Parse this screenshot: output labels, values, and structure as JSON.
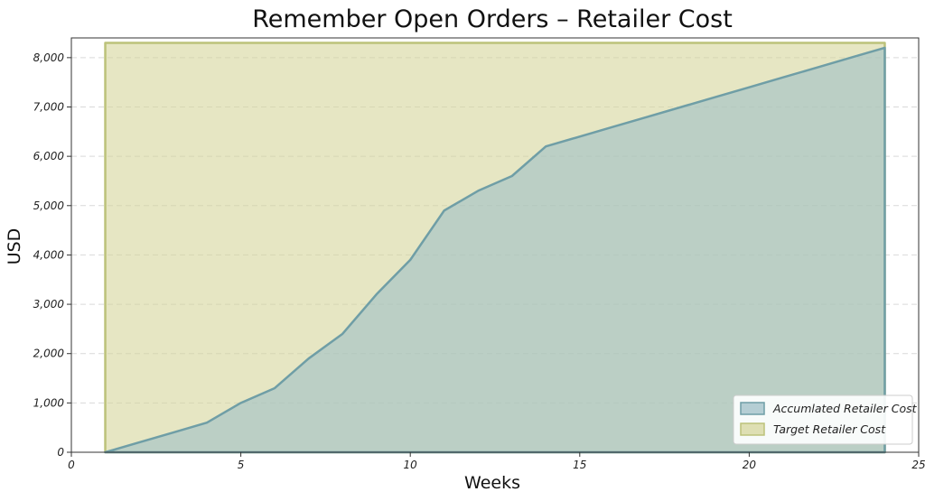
{
  "chart_data": {
    "type": "area",
    "title": "Remember Open Orders – Retailer Cost",
    "xlabel": "Weeks",
    "ylabel": "USD",
    "xlim": [
      0,
      25
    ],
    "ylim": [
      0,
      8400
    ],
    "x_ticks": [
      "0",
      "5",
      "10",
      "15",
      "20",
      "25"
    ],
    "y_ticks": [
      "0",
      "1,000",
      "2,000",
      "3,000",
      "4,000",
      "5,000",
      "6,000",
      "7,000",
      "8,000"
    ],
    "x": [
      1,
      2,
      3,
      4,
      5,
      6,
      7,
      8,
      9,
      10,
      11,
      12,
      13,
      14,
      15,
      16,
      17,
      18,
      19,
      20,
      21,
      22,
      23,
      24
    ],
    "series": [
      {
        "name": "Accumlated Retailer Cost",
        "values": [
          0,
          200,
          400,
          600,
          1000,
          1300,
          1900,
          2400,
          3200,
          3900,
          4900,
          5300,
          5600,
          6200,
          6400,
          6600,
          6800,
          7000,
          7200,
          7400,
          7600,
          7800,
          8000,
          8200
        ],
        "fill": "#9fbfc7",
        "stroke": "#6f9ea6"
      },
      {
        "name": "Target Retailer Cost",
        "values": [
          8300,
          8300,
          8300,
          8300,
          8300,
          8300,
          8300,
          8300,
          8300,
          8300,
          8300,
          8300,
          8300,
          8300,
          8300,
          8300,
          8300,
          8300,
          8300,
          8300,
          8300,
          8300,
          8300,
          8300
        ],
        "fill": "#d6d59b",
        "stroke": "#bcc27a"
      }
    ],
    "legend_position": "bottom-right",
    "grid": true
  }
}
